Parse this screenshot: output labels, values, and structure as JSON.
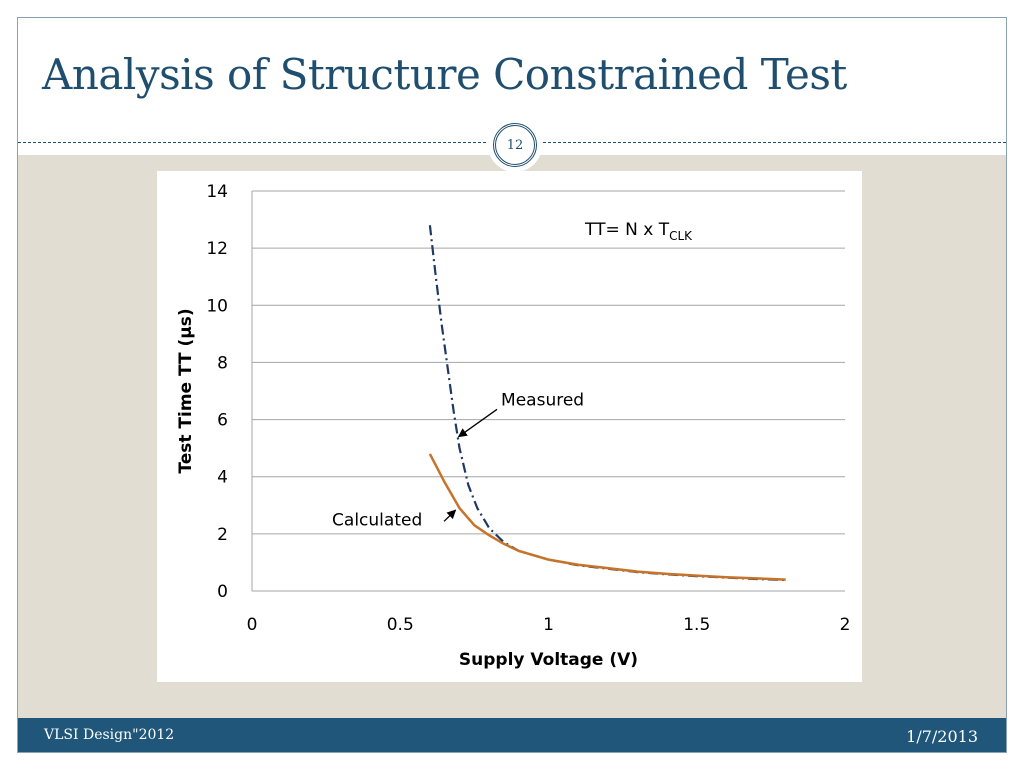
{
  "slide": {
    "title": "Analysis of Structure Constrained Test",
    "number": "12",
    "footer_left": "VLSI Design\"2012",
    "footer_right": "1/7/2013"
  },
  "colors": {
    "title": "#1f4e6e",
    "footer_bg": "#1f567a",
    "content_bg": "#e2ddd2",
    "measured": "#1f3864",
    "calculated": "#c8732a"
  },
  "chart_data": {
    "type": "line",
    "title": "",
    "xlabel": "Supply Voltage (V)",
    "ylabel": "Test Time TT (µs)",
    "xlim": [
      0,
      2
    ],
    "ylim": [
      0,
      14
    ],
    "xticks": [
      "0",
      "0.5",
      "1",
      "1.5",
      "2"
    ],
    "yticks": [
      "0",
      "2",
      "4",
      "6",
      "8",
      "10",
      "12",
      "14"
    ],
    "grid": "horizontal",
    "equation": {
      "base": "TT= N x T",
      "sub": "CLK"
    },
    "series": [
      {
        "name": "Measured",
        "style": "dash-dot",
        "color": "#1f3864",
        "x": [
          0.6,
          0.62,
          0.64,
          0.66,
          0.68,
          0.7,
          0.73,
          0.76,
          0.8,
          0.85,
          0.9,
          1.0,
          1.1,
          1.2,
          1.3,
          1.4,
          1.5,
          1.6,
          1.7,
          1.8
        ],
        "y": [
          12.8,
          11.0,
          9.3,
          7.8,
          6.3,
          5.0,
          3.7,
          2.9,
          2.2,
          1.7,
          1.4,
          1.1,
          0.9,
          0.78,
          0.66,
          0.58,
          0.52,
          0.47,
          0.42,
          0.38
        ]
      },
      {
        "name": "Calculated",
        "style": "solid",
        "color": "#c8732a",
        "x": [
          0.6,
          0.65,
          0.7,
          0.75,
          0.8,
          0.85,
          0.9,
          1.0,
          1.1,
          1.2,
          1.3,
          1.4,
          1.5,
          1.6,
          1.7,
          1.8
        ],
        "y": [
          4.8,
          3.8,
          2.9,
          2.3,
          1.95,
          1.65,
          1.4,
          1.1,
          0.92,
          0.8,
          0.68,
          0.6,
          0.54,
          0.48,
          0.44,
          0.4
        ]
      }
    ],
    "annotations": [
      {
        "text": "Measured",
        "series": "Measured",
        "x": 0.69,
        "y": 5.4,
        "label_x": 0.84,
        "label_y": 6.5
      },
      {
        "text": "Calculated",
        "series": "Calculated",
        "x": 0.7,
        "y": 2.9,
        "label_x": 0.27,
        "label_y": 2.3
      }
    ]
  }
}
